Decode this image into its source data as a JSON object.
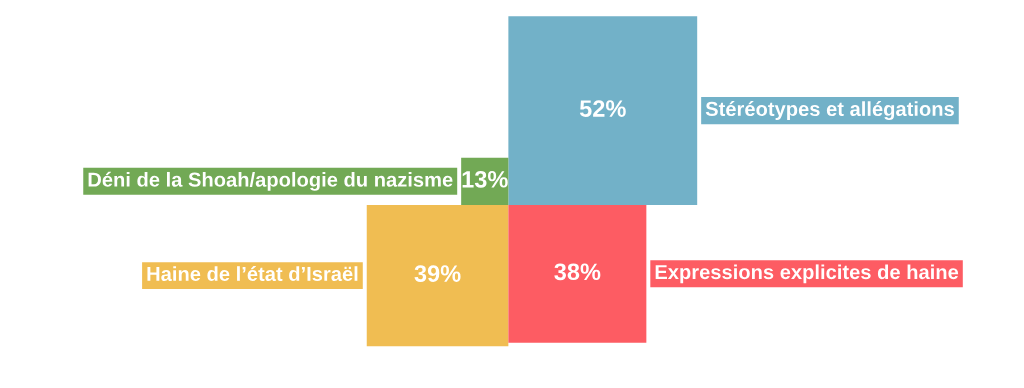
{
  "chart_data": {
    "type": "other",
    "categories": [
      "Stéréotypes et allégations",
      "Déni de la Shoah/apologie du nazisme",
      "Haine de l’état d’Israël",
      "Expressions explicites de haine"
    ],
    "values": [
      52,
      13,
      39,
      38
    ],
    "value_labels": [
      "52%",
      "13%",
      "39%",
      "38%"
    ],
    "colors": [
      "#72b1c8",
      "#72a955",
      "#f0bd52",
      "#fd5c63"
    ]
  }
}
